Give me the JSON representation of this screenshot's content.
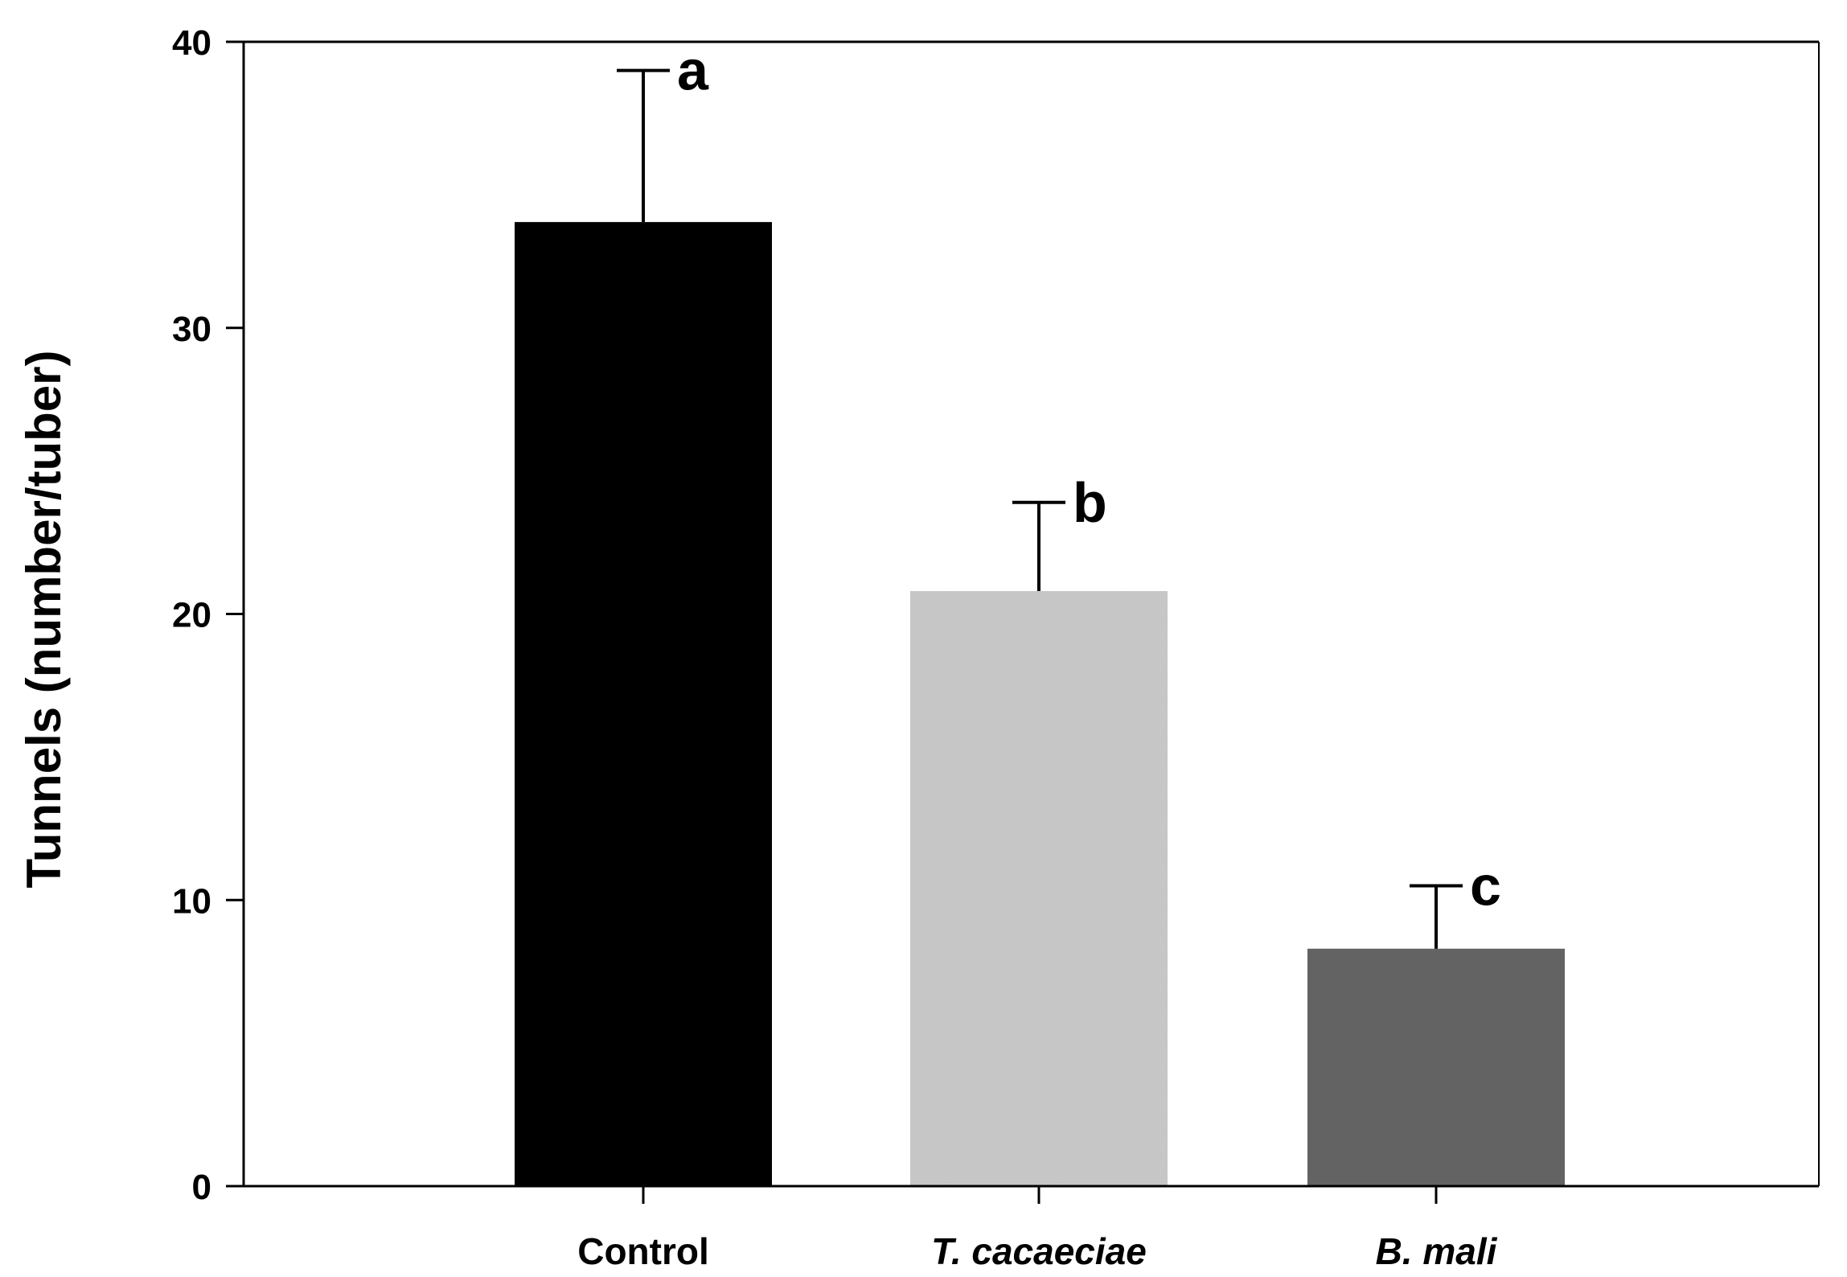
{
  "chart_data": {
    "type": "bar",
    "title": "",
    "xlabel": "",
    "ylabel": "Tunnels (number/tuber)",
    "ylim": [
      0,
      40
    ],
    "yticks": [
      0,
      10,
      20,
      30,
      40
    ],
    "grid": false,
    "categories": [
      {
        "label": "Control",
        "italic": false
      },
      {
        "label": "T. cacaeciae",
        "italic": true
      },
      {
        "label": "B. mali",
        "italic": true
      }
    ],
    "values": [
      33.7,
      20.8,
      8.3
    ],
    "error_upper": [
      39.0,
      23.9,
      10.5
    ],
    "significance_letters": [
      "a",
      "b",
      "c"
    ],
    "bar_colors": [
      "#000000",
      "#c8c8c8",
      "#636363"
    ]
  }
}
